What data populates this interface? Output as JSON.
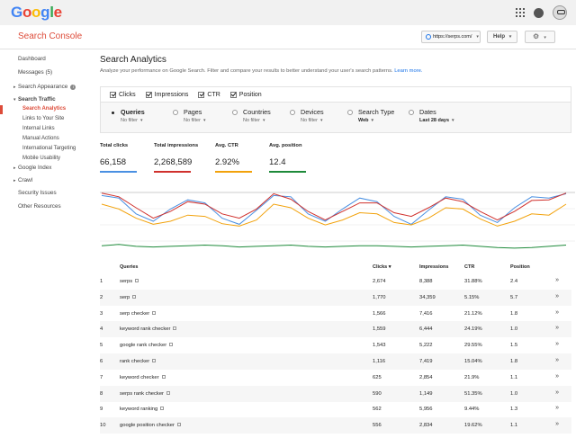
{
  "header": {
    "logo_letters": [
      {
        "ch": "G",
        "color": "#4285f4"
      },
      {
        "ch": "o",
        "color": "#ea4335"
      },
      {
        "ch": "o",
        "color": "#fbbc05"
      },
      {
        "ch": "g",
        "color": "#4285f4"
      },
      {
        "ch": "l",
        "color": "#34a853"
      },
      {
        "ch": "e",
        "color": "#ea4335"
      }
    ],
    "product_title": "Search Console",
    "site_selector": "https://serps.com/",
    "help_label": "Help"
  },
  "sidebar": {
    "dashboard": "Dashboard",
    "messages": "Messages (5)",
    "search_appearance": "Search Appearance",
    "search_traffic": "Search Traffic",
    "search_analytics": "Search Analytics",
    "links_to_site": "Links to Your Site",
    "internal_links": "Internal Links",
    "manual_actions": "Manual Actions",
    "international_targeting": "International Targeting",
    "mobile_usability": "Mobile Usability",
    "google_index": "Google Index",
    "crawl": "Crawl",
    "security_issues": "Security Issues",
    "other_resources": "Other Resources"
  },
  "main": {
    "title": "Search Analytics",
    "description": "Analyze your performance on Google Search. Filter and compare your results to better understand your user's search patterns.",
    "learn_more": "Learn more."
  },
  "metric_toggles": [
    "Clicks",
    "Impressions",
    "CTR",
    "Position"
  ],
  "groupings": [
    {
      "label": "Queries",
      "sub": "No filter",
      "selected": true
    },
    {
      "label": "Pages",
      "sub": "No filter",
      "selected": false
    },
    {
      "label": "Countries",
      "sub": "No filter",
      "selected": false
    },
    {
      "label": "Devices",
      "sub": "No filter",
      "selected": false
    },
    {
      "label": "Search Type",
      "sub": "Web",
      "selected": false
    },
    {
      "label": "Dates",
      "sub": "Last 28 days",
      "selected": false
    }
  ],
  "totals": [
    {
      "label": "Total clicks",
      "value": "66,158",
      "color": "#4a90e2"
    },
    {
      "label": "Total impressions",
      "value": "2,268,589",
      "color": "#d0312d"
    },
    {
      "label": "Avg. CTR",
      "value": "2.92%",
      "color": "#f2a20c"
    },
    {
      "label": "Avg. position",
      "value": "12.4",
      "color": "#1e8a3a"
    }
  ],
  "table": {
    "headers": {
      "query": "Queries",
      "clicks": "Clicks ▾",
      "impressions": "Impressions",
      "ctr": "CTR",
      "position": "Position"
    },
    "rows": [
      {
        "n": "1",
        "query": "serps",
        "clicks": "2,674",
        "impressions": "8,388",
        "ctr": "31.88%",
        "position": "2.4"
      },
      {
        "n": "2",
        "query": "serp",
        "clicks": "1,770",
        "impressions": "34,359",
        "ctr": "5.15%",
        "position": "5.7"
      },
      {
        "n": "3",
        "query": "serp checker",
        "clicks": "1,566",
        "impressions": "7,416",
        "ctr": "21.12%",
        "position": "1.8"
      },
      {
        "n": "4",
        "query": "keyword rank checker",
        "clicks": "1,559",
        "impressions": "6,444",
        "ctr": "24.19%",
        "position": "1.0"
      },
      {
        "n": "5",
        "query": "google rank checker",
        "clicks": "1,543",
        "impressions": "5,222",
        "ctr": "29.55%",
        "position": "1.5"
      },
      {
        "n": "6",
        "query": "rank checker",
        "clicks": "1,116",
        "impressions": "7,419",
        "ctr": "15.04%",
        "position": "1.8"
      },
      {
        "n": "7",
        "query": "keyword checker",
        "clicks": "625",
        "impressions": "2,854",
        "ctr": "21.9%",
        "position": "1.1"
      },
      {
        "n": "8",
        "query": "serps rank checker",
        "clicks": "590",
        "impressions": "1,149",
        "ctr": "51.35%",
        "position": "1.0"
      },
      {
        "n": "9",
        "query": "keyword ranking",
        "clicks": "562",
        "impressions": "5,956",
        "ctr": "9.44%",
        "position": "1.3"
      },
      {
        "n": "10",
        "query": "google position checker",
        "clicks": "556",
        "impressions": "2,834",
        "ctr": "19.62%",
        "position": "1.1"
      }
    ]
  },
  "chart_data": {
    "type": "line",
    "title": "",
    "xlabel": "",
    "ylabel": "",
    "x": [
      1,
      2,
      3,
      4,
      5,
      6,
      7,
      8,
      9,
      10,
      11,
      12,
      13,
      14,
      15,
      16,
      17,
      18,
      19,
      20,
      21,
      22,
      23,
      24,
      25,
      26,
      27,
      28
    ],
    "series": [
      {
        "color": "#4a90e2",
        "values": [
          0.92,
          0.88,
          0.62,
          0.5,
          0.7,
          0.85,
          0.8,
          0.55,
          0.45,
          0.68,
          0.92,
          0.9,
          0.62,
          0.5,
          0.7,
          0.88,
          0.82,
          0.58,
          0.45,
          0.68,
          0.9,
          0.86,
          0.6,
          0.48,
          0.72,
          0.9,
          0.88,
          0.95
        ]
      },
      {
        "color": "#d0312d",
        "values": [
          0.96,
          0.9,
          0.72,
          0.55,
          0.66,
          0.82,
          0.78,
          0.62,
          0.55,
          0.7,
          0.95,
          0.86,
          0.66,
          0.52,
          0.66,
          0.8,
          0.8,
          0.64,
          0.58,
          0.72,
          0.88,
          0.82,
          0.66,
          0.52,
          0.66,
          0.84,
          0.85,
          0.96
        ]
      },
      {
        "color": "#f2a20c",
        "values": [
          0.78,
          0.7,
          0.55,
          0.45,
          0.5,
          0.6,
          0.58,
          0.46,
          0.42,
          0.52,
          0.78,
          0.72,
          0.55,
          0.44,
          0.52,
          0.64,
          0.62,
          0.48,
          0.44,
          0.55,
          0.72,
          0.7,
          0.54,
          0.42,
          0.5,
          0.62,
          0.6,
          0.78
        ]
      },
      {
        "color": "#1e8a3a",
        "values": [
          0.1,
          0.12,
          0.09,
          0.08,
          0.09,
          0.1,
          0.11,
          0.1,
          0.08,
          0.09,
          0.1,
          0.11,
          0.09,
          0.08,
          0.09,
          0.1,
          0.1,
          0.09,
          0.08,
          0.09,
          0.1,
          0.11,
          0.09,
          0.07,
          0.06,
          0.07,
          0.09,
          0.11
        ]
      }
    ]
  }
}
